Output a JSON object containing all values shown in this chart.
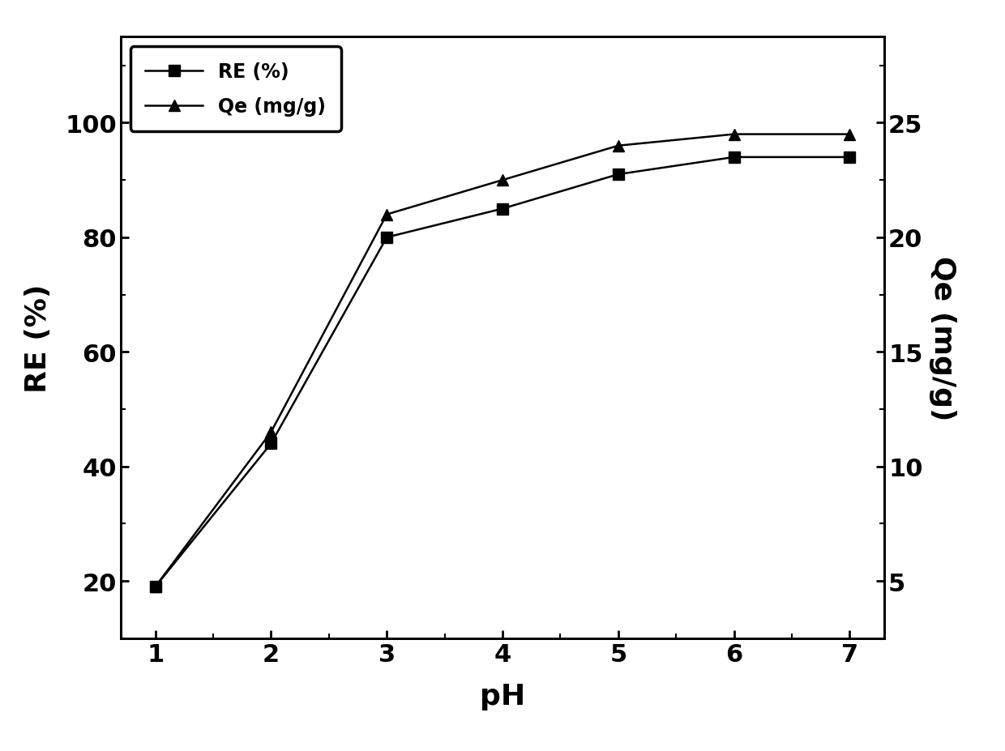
{
  "pH": [
    1,
    2,
    3,
    4,
    5,
    6,
    7
  ],
  "RE": [
    19,
    44,
    80,
    85,
    91,
    94,
    94
  ],
  "Qe": [
    4.75,
    11.5,
    21.0,
    22.5,
    24.0,
    24.5,
    24.5
  ],
  "RE_label": "RE (%)",
  "Qe_label": "Qe (mg/g)",
  "xlabel": "pH",
  "ylabel_left": "RE (%)",
  "ylabel_right": "Qe (mg/g)",
  "ylim_left": [
    10,
    115
  ],
  "ylim_right": [
    2.5,
    28.75
  ],
  "yticks_left": [
    20,
    40,
    60,
    80,
    100
  ],
  "yticks_right": [
    5,
    10,
    15,
    20,
    25
  ],
  "xlim": [
    0.7,
    7.3
  ],
  "xticks": [
    1,
    2,
    3,
    4,
    5,
    6,
    7
  ],
  "line_color": "#000000",
  "marker_RE": "s",
  "marker_Qe": "^",
  "markersize": 10,
  "linewidth": 1.8,
  "legend_fontsize": 17,
  "axis_label_fontsize": 26,
  "tick_fontsize": 22,
  "background_color": "#ffffff"
}
